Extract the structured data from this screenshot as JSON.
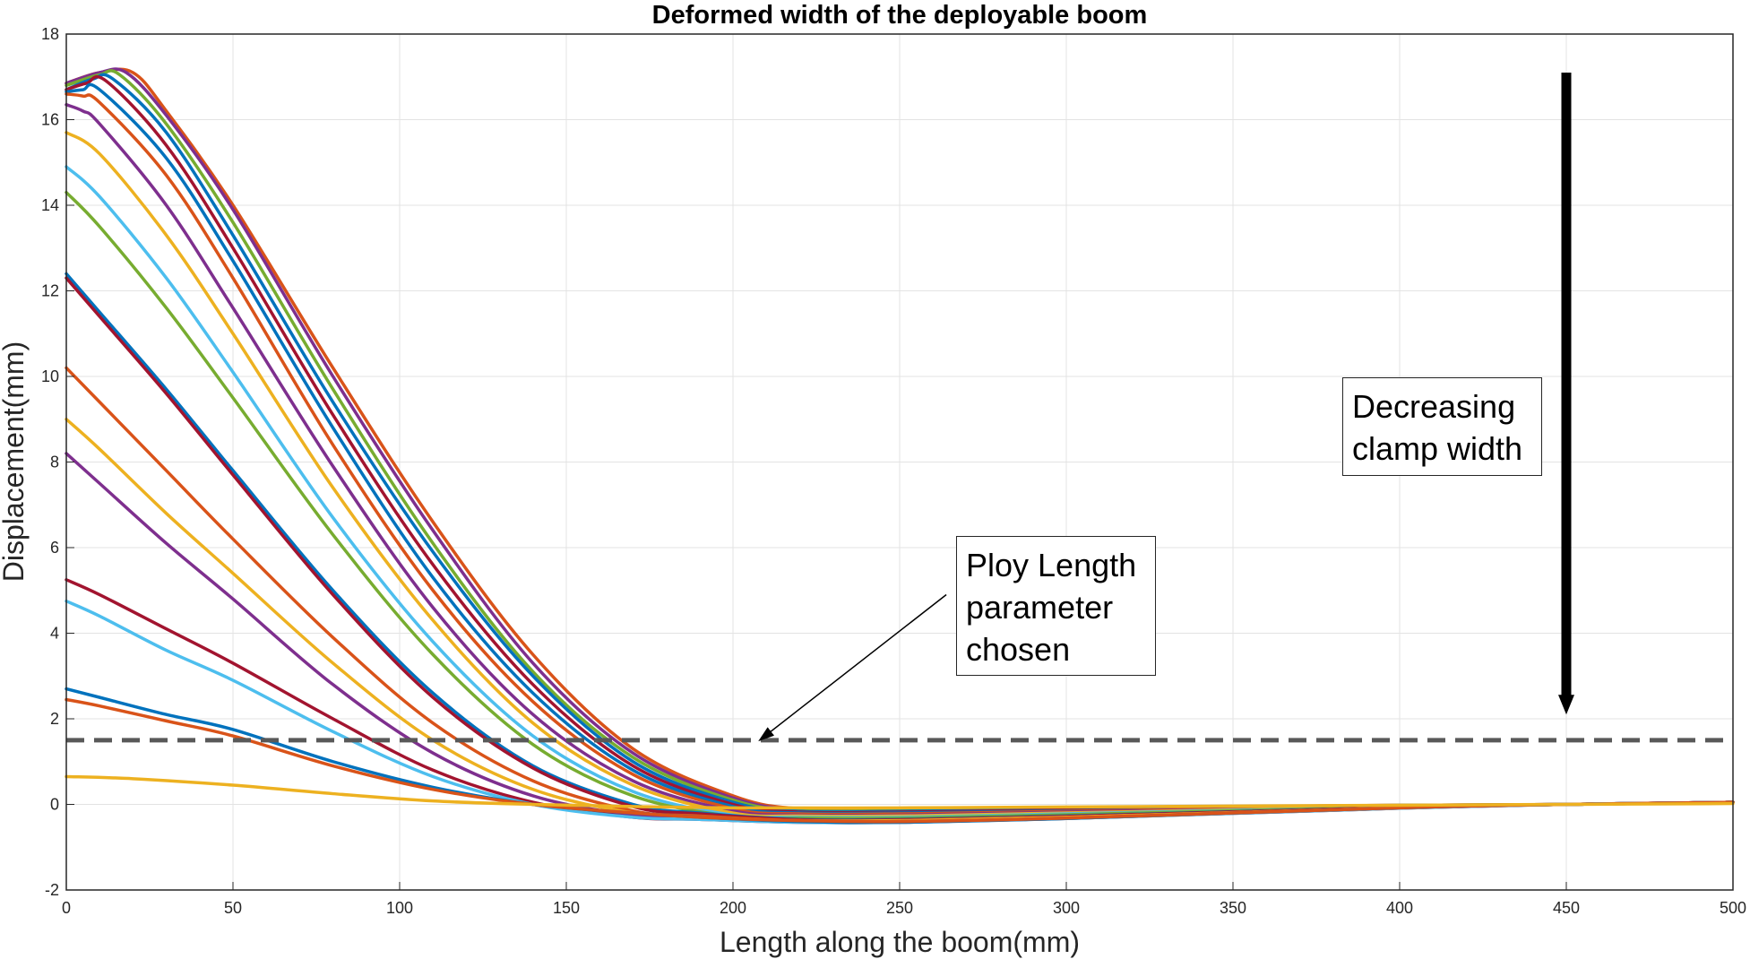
{
  "chart_data": {
    "type": "line",
    "title": "Deformed width of the deployable boom",
    "xlabel": "Length along the boom(mm)",
    "ylabel": "Displacement(mm)",
    "xlim": [
      0,
      500
    ],
    "ylim": [
      -2,
      18
    ],
    "xticks": [
      0,
      50,
      100,
      150,
      200,
      250,
      300,
      350,
      400,
      450,
      500
    ],
    "yticks": [
      -2,
      0,
      2,
      4,
      6,
      8,
      10,
      12,
      14,
      16,
      18
    ],
    "grid": true,
    "legend": "none",
    "threshold_line": {
      "y": 1.5,
      "style": "dashed",
      "color": "#595959"
    },
    "series": [
      {
        "color": "#D95319",
        "x": [
          0,
          10,
          20,
          30,
          50,
          80,
          110,
          140,
          170,
          200,
          220,
          250,
          300,
          400,
          450,
          500
        ],
        "y": [
          16.85,
          17.1,
          17.1,
          16.2,
          14.0,
          10.2,
          6.6,
          3.5,
          1.3,
          0.2,
          -0.1,
          -0.1,
          -0.08,
          -0.02,
          0,
          0.05
        ]
      },
      {
        "color": "#7E2F8E",
        "x": [
          0,
          10,
          18,
          30,
          50,
          80,
          110,
          140,
          170,
          200,
          220,
          250,
          300,
          400,
          450,
          500
        ],
        "y": [
          16.85,
          17.1,
          17.1,
          16.1,
          13.9,
          10.0,
          6.4,
          3.3,
          1.2,
          0.15,
          -0.12,
          -0.12,
          -0.09,
          -0.02,
          0,
          0.05
        ]
      },
      {
        "color": "#77AC30",
        "x": [
          0,
          10,
          16,
          30,
          50,
          80,
          110,
          140,
          170,
          200,
          220,
          250,
          300,
          400,
          450,
          500
        ],
        "y": [
          16.8,
          17.05,
          17.05,
          15.9,
          13.6,
          9.7,
          6.1,
          3.1,
          1.1,
          0.1,
          -0.14,
          -0.14,
          -0.1,
          -0.02,
          0,
          0.05
        ]
      },
      {
        "color": "#0072BD",
        "x": [
          0,
          8,
          14,
          30,
          50,
          80,
          110,
          140,
          170,
          200,
          220,
          250,
          300,
          400,
          450,
          500
        ],
        "y": [
          16.7,
          16.95,
          16.95,
          15.7,
          13.3,
          9.4,
          5.9,
          3.0,
          1.0,
          0.05,
          -0.16,
          -0.16,
          -0.12,
          -0.03,
          0,
          0.05
        ]
      },
      {
        "color": "#A2142F",
        "x": [
          0,
          6,
          12,
          30,
          50,
          80,
          110,
          140,
          170,
          200,
          220,
          250,
          300,
          400,
          450,
          500
        ],
        "y": [
          16.7,
          16.85,
          16.9,
          15.4,
          13.0,
          9.1,
          5.6,
          2.8,
          0.9,
          0.0,
          -0.18,
          -0.18,
          -0.13,
          -0.03,
          0,
          0.05
        ]
      },
      {
        "color": "#0072BD",
        "x": [
          0,
          5,
          10,
          30,
          50,
          80,
          110,
          140,
          170,
          200,
          220,
          250,
          300,
          400,
          450,
          500
        ],
        "y": [
          16.65,
          16.7,
          16.7,
          15.1,
          12.7,
          8.8,
          5.3,
          2.6,
          0.8,
          -0.05,
          -0.2,
          -0.2,
          -0.15,
          -0.04,
          0,
          0.05
        ]
      },
      {
        "color": "#D95319",
        "x": [
          0,
          5,
          10,
          30,
          50,
          80,
          110,
          140,
          170,
          200,
          220,
          250,
          300,
          400,
          450,
          500
        ],
        "y": [
          16.6,
          16.55,
          16.4,
          14.7,
          12.3,
          8.4,
          5.0,
          2.4,
          0.7,
          -0.1,
          -0.22,
          -0.22,
          -0.16,
          -0.04,
          0,
          0.05
        ]
      },
      {
        "color": "#7E2F8E",
        "x": [
          0,
          5,
          10,
          30,
          50,
          80,
          110,
          140,
          170,
          200,
          220,
          250,
          300,
          400,
          450,
          500
        ],
        "y": [
          16.35,
          16.2,
          15.9,
          14.0,
          11.6,
          7.9,
          4.6,
          2.1,
          0.55,
          -0.15,
          -0.25,
          -0.25,
          -0.18,
          -0.05,
          0,
          0.05
        ]
      },
      {
        "color": "#EDB120",
        "x": [
          0,
          10,
          30,
          50,
          80,
          110,
          140,
          170,
          200,
          220,
          250,
          300,
          400,
          450,
          500
        ],
        "y": [
          15.7,
          15.2,
          13.3,
          11.0,
          7.4,
          4.3,
          1.9,
          0.45,
          -0.2,
          -0.27,
          -0.27,
          -0.2,
          -0.05,
          0,
          0.05
        ]
      },
      {
        "color": "#4DBEEE",
        "x": [
          0,
          10,
          30,
          50,
          80,
          110,
          140,
          170,
          200,
          220,
          250,
          300,
          400,
          450,
          500
        ],
        "y": [
          14.9,
          14.2,
          12.3,
          10.1,
          6.7,
          3.8,
          1.6,
          0.3,
          -0.25,
          -0.3,
          -0.3,
          -0.22,
          -0.06,
          0,
          0.05
        ]
      },
      {
        "color": "#77AC30",
        "x": [
          0,
          10,
          30,
          50,
          80,
          110,
          140,
          170,
          200,
          220,
          250,
          300,
          400,
          450,
          500
        ],
        "y": [
          14.3,
          13.5,
          11.6,
          9.5,
          6.3,
          3.5,
          1.4,
          0.2,
          -0.28,
          -0.32,
          -0.32,
          -0.24,
          -0.06,
          0,
          0.05
        ]
      },
      {
        "color": "#0072BD",
        "x": [
          0,
          10,
          30,
          50,
          80,
          110,
          140,
          170,
          190,
          220,
          250,
          300,
          400,
          450,
          500
        ],
        "y": [
          12.4,
          11.5,
          9.7,
          7.8,
          5.0,
          2.6,
          0.9,
          0.0,
          -0.2,
          -0.35,
          -0.35,
          -0.27,
          -0.07,
          0,
          0.05
        ]
      },
      {
        "color": "#A2142F",
        "x": [
          0,
          10,
          30,
          50,
          80,
          110,
          140,
          170,
          190,
          220,
          250,
          300,
          400,
          450,
          500
        ],
        "y": [
          12.3,
          11.4,
          9.6,
          7.7,
          4.9,
          2.5,
          0.85,
          -0.05,
          -0.22,
          -0.36,
          -0.36,
          -0.28,
          -0.07,
          0,
          0.05
        ]
      },
      {
        "color": "#D95319",
        "x": [
          0,
          10,
          30,
          50,
          80,
          110,
          140,
          170,
          190,
          220,
          250,
          300,
          400,
          450,
          500
        ],
        "y": [
          10.2,
          9.4,
          7.8,
          6.2,
          3.9,
          1.9,
          0.55,
          -0.15,
          -0.27,
          -0.38,
          -0.38,
          -0.3,
          -0.08,
          0,
          0.05
        ]
      },
      {
        "color": "#EDB120",
        "x": [
          0,
          10,
          30,
          50,
          80,
          110,
          140,
          170,
          190,
          220,
          250,
          300,
          400,
          450,
          500
        ],
        "y": [
          9.0,
          8.3,
          6.8,
          5.4,
          3.3,
          1.5,
          0.35,
          -0.2,
          -0.3,
          -0.38,
          -0.38,
          -0.3,
          -0.08,
          0,
          0.05
        ]
      },
      {
        "color": "#7E2F8E",
        "x": [
          0,
          10,
          30,
          50,
          80,
          110,
          140,
          170,
          190,
          220,
          250,
          300,
          400,
          450,
          500
        ],
        "y": [
          8.2,
          7.5,
          6.1,
          4.8,
          2.8,
          1.2,
          0.2,
          -0.25,
          -0.32,
          -0.4,
          -0.4,
          -0.32,
          -0.08,
          0,
          0.05
        ]
      },
      {
        "color": "#A2142F",
        "x": [
          0,
          10,
          30,
          50,
          80,
          110,
          140,
          170,
          190,
          220,
          250,
          300,
          400,
          450,
          500
        ],
        "y": [
          5.25,
          4.9,
          4.1,
          3.3,
          2.0,
          0.8,
          0.05,
          -0.3,
          -0.35,
          -0.42,
          -0.42,
          -0.33,
          -0.09,
          0,
          0.05
        ]
      },
      {
        "color": "#4DBEEE",
        "x": [
          0,
          10,
          30,
          50,
          80,
          110,
          140,
          170,
          190,
          220,
          250,
          300,
          400,
          450,
          500
        ],
        "y": [
          4.75,
          4.4,
          3.6,
          2.9,
          1.7,
          0.65,
          0.0,
          -0.3,
          -0.35,
          -0.42,
          -0.42,
          -0.33,
          -0.09,
          0,
          0.05
        ]
      },
      {
        "color": "#0072BD",
        "x": [
          0,
          10,
          30,
          50,
          80,
          110,
          140,
          170,
          190,
          220,
          250,
          300,
          400,
          450,
          500
        ],
        "y": [
          2.7,
          2.5,
          2.1,
          1.75,
          1.0,
          0.4,
          0.0,
          -0.2,
          -0.3,
          -0.4,
          -0.42,
          -0.33,
          -0.08,
          0,
          0.05
        ]
      },
      {
        "color": "#D95319",
        "x": [
          0,
          10,
          30,
          50,
          80,
          110,
          140,
          170,
          190,
          220,
          250,
          300,
          400,
          450,
          500
        ],
        "y": [
          2.45,
          2.3,
          1.95,
          1.6,
          0.9,
          0.35,
          0.0,
          -0.2,
          -0.3,
          -0.38,
          -0.4,
          -0.32,
          -0.08,
          0,
          0.05
        ]
      },
      {
        "color": "#EDB120",
        "x": [
          0,
          20,
          50,
          80,
          110,
          140,
          170,
          200,
          250,
          300,
          400,
          450,
          500
        ],
        "y": [
          0.65,
          0.6,
          0.45,
          0.25,
          0.08,
          0.0,
          -0.05,
          -0.08,
          -0.08,
          -0.06,
          -0.02,
          0,
          0.02
        ]
      }
    ],
    "annotations": [
      {
        "lines": [
          "Ploy Length",
          "parameter",
          "chosen"
        ],
        "arrow_from": [
          264,
          4.9
        ],
        "arrow_to": [
          208,
          1.5
        ]
      },
      {
        "lines": [
          "Decreasing",
          "clamp width"
        ],
        "arrow_from": [
          450,
          17.1
        ],
        "arrow_to": [
          450,
          2.1
        ]
      }
    ]
  }
}
